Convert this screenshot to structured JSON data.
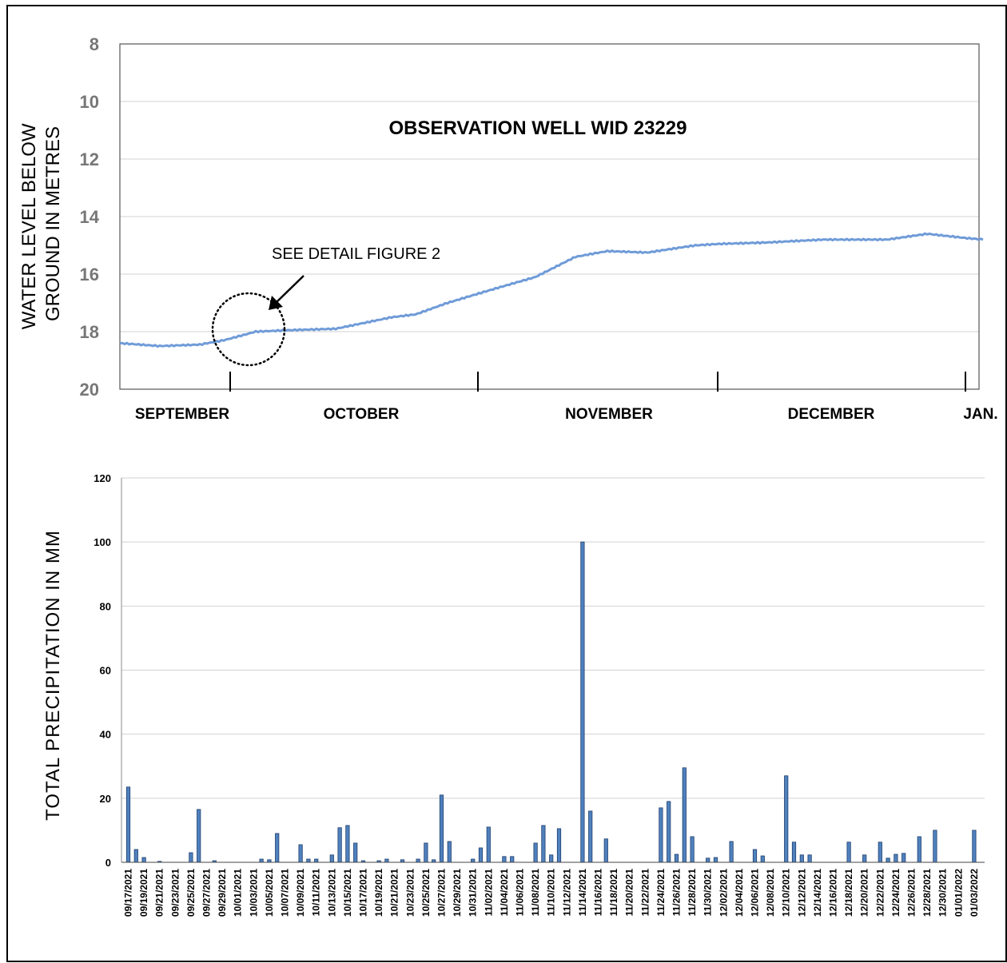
{
  "chart_data": [
    {
      "type": "line",
      "title": "OBSERVATION WELL WID 23229",
      "ylabel": "WATER LEVEL BELOW\nGROUND IN METRES",
      "ylim": [
        20,
        8
      ],
      "y_inverted": true,
      "yticks": [
        8,
        10,
        12,
        14,
        16,
        18,
        20
      ],
      "x_months": [
        "SEPTEMBER",
        "OCTOBER",
        "NOVEMBER",
        "DECEMBER",
        "JAN."
      ],
      "xlim": [
        "2021-09-17",
        "2022-01-03"
      ],
      "grid": true,
      "line_color": "#6f9bd8",
      "annotation": "SEE DETAIL FIGURE 2",
      "series": [
        {
          "x": [
            "2021-09-17",
            "2021-09-22",
            "2021-09-27",
            "2021-09-30",
            "2021-10-04",
            "2021-10-08",
            "2021-10-14",
            "2021-10-21",
            "2021-10-24",
            "2021-10-28",
            "2021-11-03",
            "2021-11-08",
            "2021-11-13",
            "2021-11-17",
            "2021-11-22",
            "2021-11-28",
            "2021-12-01",
            "2021-12-07",
            "2021-12-14",
            "2021-12-22",
            "2021-12-27",
            "2022-01-01",
            "2022-01-03"
          ],
          "values": [
            18.4,
            18.5,
            18.45,
            18.3,
            18.0,
            17.95,
            17.9,
            17.5,
            17.4,
            17.0,
            16.5,
            16.1,
            15.4,
            15.2,
            15.25,
            15.0,
            14.95,
            14.9,
            14.8,
            14.8,
            14.6,
            14.75,
            14.8
          ]
        }
      ]
    },
    {
      "type": "bar",
      "ylabel": "TOTAL  PRECIPITATION  IN  MM",
      "ylim": [
        0,
        120
      ],
      "yticks": [
        0,
        20,
        40,
        60,
        80,
        100,
        120
      ],
      "grid": true,
      "bar_color": "#4f81bd",
      "categories": [
        "09/17/2021",
        "09/18/2021",
        "09/19/2021",
        "09/20/2021",
        "09/21/2021",
        "09/22/2021",
        "09/23/2021",
        "09/24/2021",
        "09/25/2021",
        "09/26/2021",
        "09/27/2021",
        "09/28/2021",
        "09/29/2021",
        "09/30/2021",
        "10/01/2021",
        "10/02/2021",
        "10/03/2021",
        "10/04/2021",
        "10/05/2021",
        "10/06/2021",
        "10/07/2021",
        "10/08/2021",
        "10/09/2021",
        "10/10/2021",
        "10/11/2021",
        "10/12/2021",
        "10/13/2021",
        "10/14/2021",
        "10/15/2021",
        "10/16/2021",
        "10/17/2021",
        "10/18/2021",
        "10/19/2021",
        "10/20/2021",
        "10/21/2021",
        "10/22/2021",
        "10/23/2021",
        "10/24/2021",
        "10/25/2021",
        "10/26/2021",
        "10/27/2021",
        "10/28/2021",
        "10/29/2021",
        "10/30/2021",
        "10/31/2021",
        "11/01/2021",
        "11/02/2021",
        "11/03/2021",
        "11/04/2021",
        "11/05/2021",
        "11/06/2021",
        "11/07/2021",
        "11/08/2021",
        "11/09/2021",
        "11/10/2021",
        "11/11/2021",
        "11/12/2021",
        "11/13/2021",
        "11/14/2021",
        "11/15/2021",
        "11/16/2021",
        "11/17/2021",
        "11/18/2021",
        "11/19/2021",
        "11/20/2021",
        "11/21/2021",
        "11/22/2021",
        "11/23/2021",
        "11/24/2021",
        "11/25/2021",
        "11/26/2021",
        "11/27/2021",
        "11/28/2021",
        "11/29/2021",
        "11/30/2021",
        "12/01/2021",
        "12/02/2021",
        "12/03/2021",
        "12/04/2021",
        "12/05/2021",
        "12/06/2021",
        "12/07/2021",
        "12/08/2021",
        "12/09/2021",
        "12/10/2021",
        "12/11/2021",
        "12/12/2021",
        "12/13/2021",
        "12/14/2021",
        "12/15/2021",
        "12/16/2021",
        "12/17/2021",
        "12/18/2021",
        "12/19/2021",
        "12/20/2021",
        "12/21/2021",
        "12/22/2021",
        "12/23/2021",
        "12/24/2021",
        "12/25/2021",
        "12/26/2021",
        "12/27/2021",
        "12/28/2021",
        "12/29/2021",
        "12/30/2021",
        "12/31/2021",
        "01/01/2022",
        "01/02/2022",
        "01/03/2022"
      ],
      "values": [
        23.5,
        4,
        1.5,
        0,
        0.3,
        0,
        0,
        0,
        3,
        16.5,
        0,
        0.5,
        0,
        0,
        0,
        0,
        0,
        1,
        0.8,
        9,
        0,
        0,
        5.5,
        1,
        1,
        0,
        2.3,
        10.8,
        11.5,
        6,
        0.5,
        0,
        0.5,
        1,
        0,
        0.8,
        0,
        1,
        6,
        0.8,
        21,
        6.5,
        0,
        0,
        1,
        4.5,
        11,
        0,
        1.8,
        1.8,
        0,
        0,
        6,
        11.5,
        2.3,
        10.5,
        0,
        0,
        100,
        16,
        0,
        7.3,
        0,
        0,
        0,
        0,
        0,
        0,
        17,
        19,
        2.5,
        29.5,
        8,
        0,
        1.3,
        1.5,
        0,
        6.5,
        0,
        0,
        4,
        2,
        0,
        0,
        27,
        6.3,
        2.3,
        2.3,
        0,
        0,
        0,
        0,
        6.3,
        0,
        2.3,
        0,
        6.3,
        1.3,
        2.5,
        2.8,
        0,
        8,
        0,
        10,
        0,
        0,
        0,
        0,
        10
      ]
    }
  ]
}
